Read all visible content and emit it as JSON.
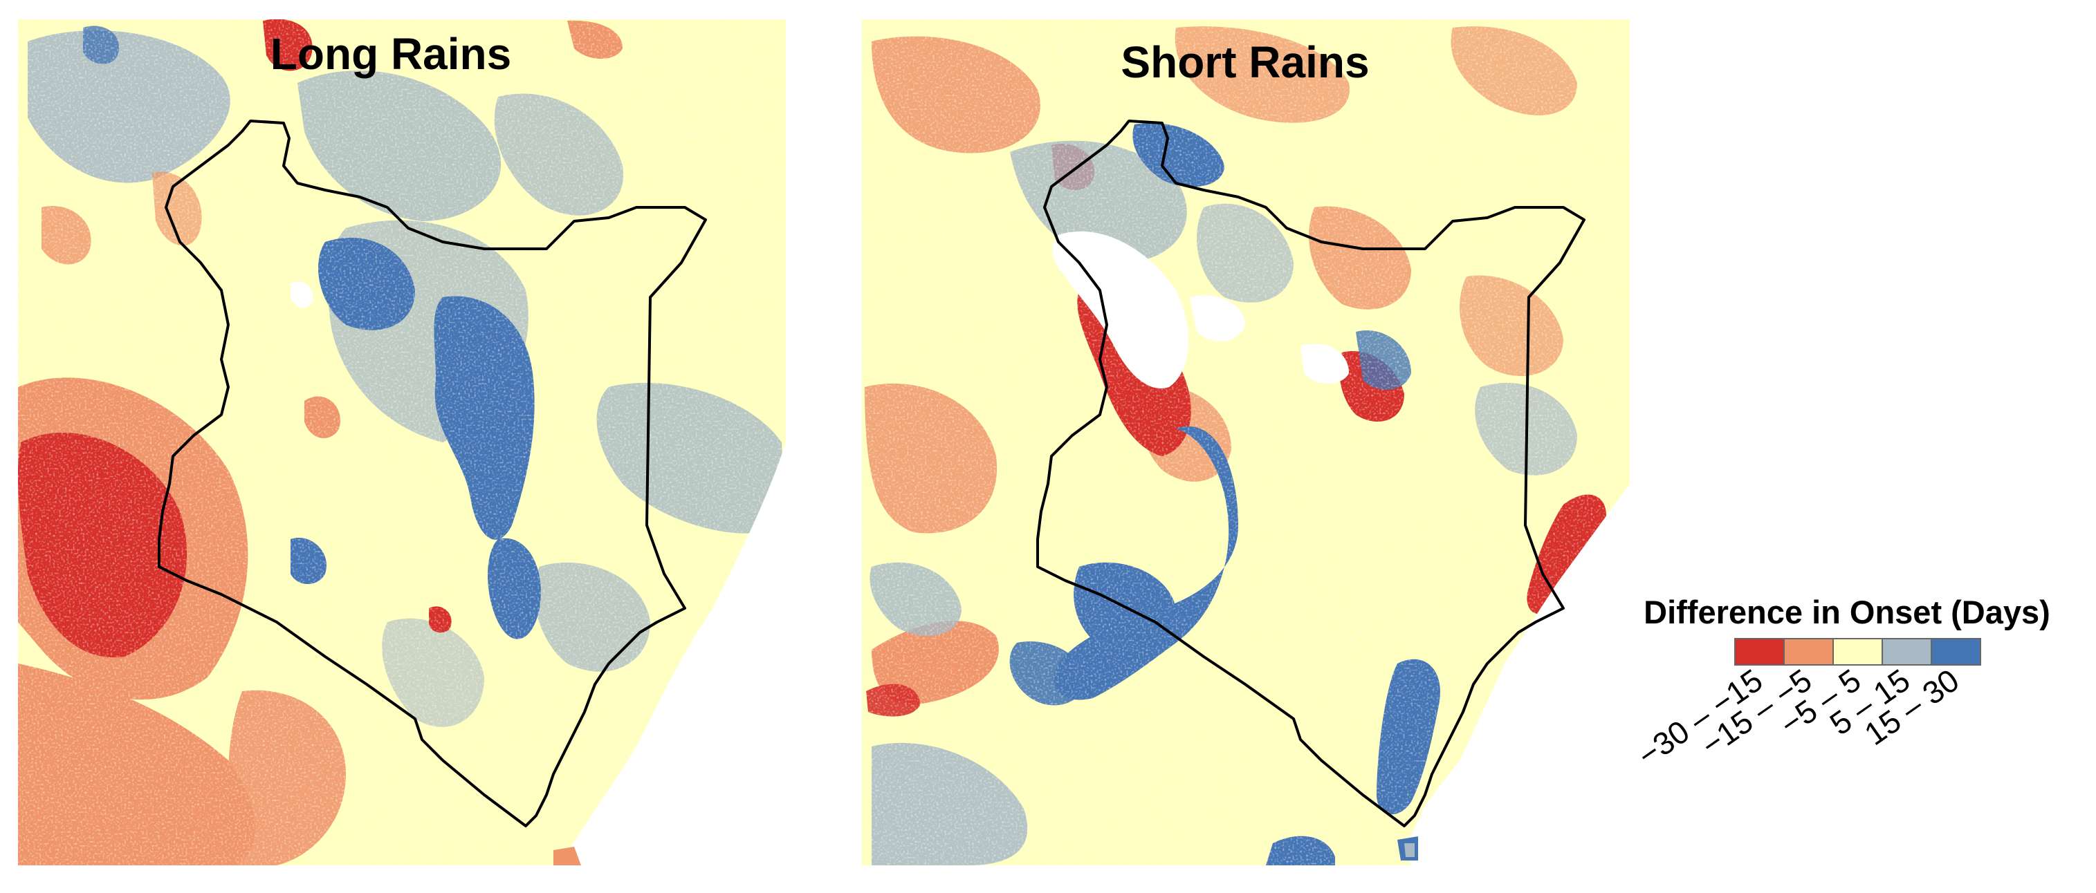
{
  "panels": [
    {
      "title": "Long Rains"
    },
    {
      "title": "Short Rains"
    }
  ],
  "legend": {
    "title": "Difference in Onset (Days)",
    "classes": [
      {
        "label": "−30 – −15",
        "color": "#d7302b"
      },
      {
        "label": "−15 – −5",
        "color": "#f0956a"
      },
      {
        "label": "−5 – 5",
        "color": "#ffffbf"
      },
      {
        "label": "5 – 15",
        "color": "#a8b9c4"
      },
      {
        "label": "15 – 30",
        "color": "#4575b4"
      }
    ],
    "no_data_color": "#ffffff"
  },
  "boundary_color": "#000000"
}
